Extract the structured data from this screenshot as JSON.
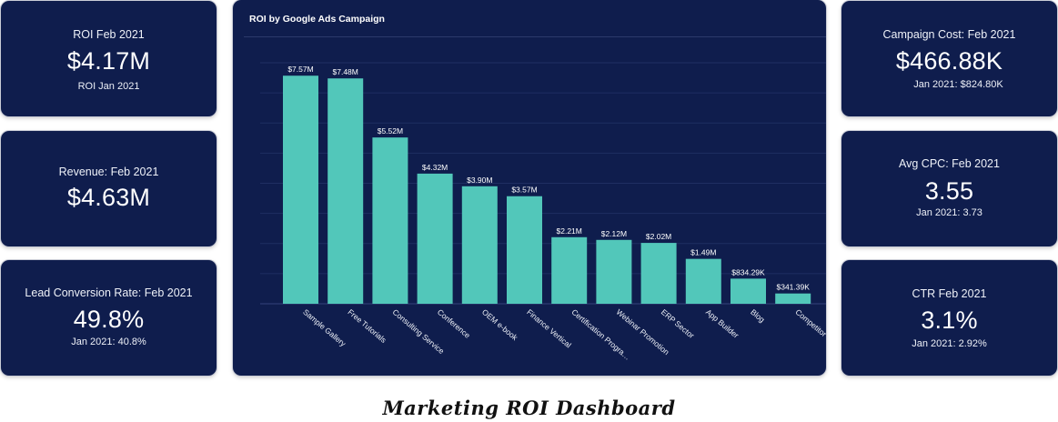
{
  "dashboard_title": "Marketing ROI Dashboard",
  "colors": {
    "card_bg": "#0f1d4d",
    "bar": "#52c7ba",
    "text": "#ffffff"
  },
  "left_cards": [
    {
      "label": "ROI Feb 2021",
      "value": "$4.17M",
      "sub": "ROI Jan 2021"
    },
    {
      "label": "Revenue: Feb 2021",
      "value": "$4.63M",
      "sub": ""
    },
    {
      "label": "Lead Conversion Rate: Feb 2021",
      "value": "49.8%",
      "sub": "Jan 2021: 40.8%"
    }
  ],
  "right_cards": [
    {
      "label": "Campaign Cost: Feb 2021",
      "value": "$466.88K",
      "sub": "Jan 2021: $824.80K"
    },
    {
      "label": "Avg CPC: Feb 2021",
      "value": "3.55",
      "sub": "Jan 2021: 3.73"
    },
    {
      "label": "CTR Feb 2021",
      "value": "3.1%",
      "sub": "Jan 2021: 2.92%"
    }
  ],
  "chart_data": {
    "type": "bar",
    "title": "ROI by Google Ads Campaign",
    "categories": [
      "Sample Gallery",
      "Free Tutorials",
      "Consulting Service",
      "Conference",
      "OEM e-book",
      "Finance Vertical",
      "Certification Progra…",
      "Webinar Promotion",
      "ERP Sector",
      "App Builder",
      "Blog",
      "Competitor"
    ],
    "values": [
      7.57,
      7.48,
      5.52,
      4.32,
      3.9,
      3.57,
      2.21,
      2.12,
      2.02,
      1.49,
      0.83429,
      0.34139
    ],
    "value_labels": [
      "$7.57M",
      "$7.48M",
      "$5.52M",
      "$4.32M",
      "$3.90M",
      "$3.57M",
      "$2.21M",
      "$2.12M",
      "$2.02M",
      "$1.49M",
      "$834.29K",
      "$341.39K"
    ],
    "unit": "M",
    "ylim": [
      0,
      8
    ],
    "grid": true,
    "bar_color": "#52c7ba"
  }
}
